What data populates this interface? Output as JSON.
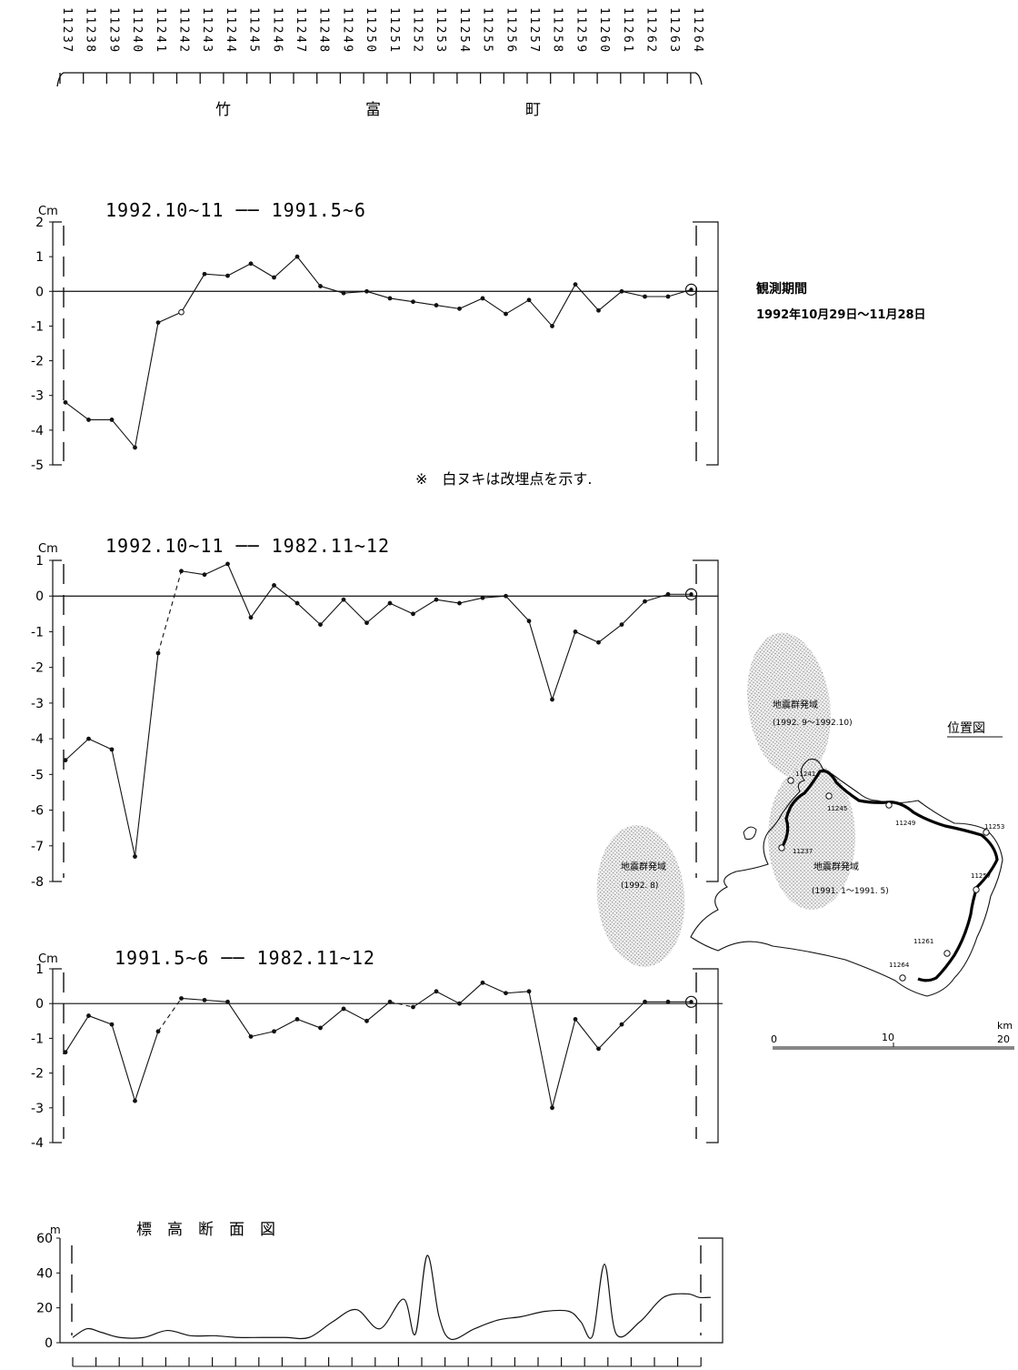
{
  "benchmarks": [
    "11237",
    "11238",
    "11239",
    "11240",
    "11241",
    "11242",
    "11243",
    "11244",
    "11245",
    "11246",
    "11247",
    "11248",
    "11249",
    "11250",
    "11251",
    "11252",
    "11253",
    "11254",
    "11255",
    "11256",
    "11257",
    "11258",
    "11259",
    "11260",
    "11261",
    "11262",
    "11263",
    "11264"
  ],
  "route_name": [
    "竹",
    "富",
    "町"
  ],
  "observation": {
    "label": "観測期間",
    "period": "1992年10月29日～11月28日"
  },
  "note": "※　白ヌキは改埋点を示す.",
  "location_map": {
    "title": "位置図",
    "swarms": [
      {
        "label": "地震群発域",
        "period": "(1992. 9～1992.10)"
      },
      {
        "label": "地震群発域",
        "period": "(1991. 1～1991. 5)"
      },
      {
        "label": "地震群発域",
        "period": "(1992. 8)"
      }
    ],
    "point_labels": [
      "11241",
      "11245",
      "11249",
      "11253",
      "11237",
      "11257",
      "11261",
      "11264"
    ],
    "scale": {
      "unit": "km",
      "ticks": [
        "0",
        "10",
        "20"
      ]
    }
  },
  "chart_data": [
    {
      "type": "line",
      "title": "1992.10~11 ── 1991.5~6",
      "ylabel": "Cm",
      "ylim": [
        -5,
        2
      ],
      "yticks": [
        "2",
        "1",
        "0",
        "-1",
        "-2",
        "-3",
        "-4",
        "-5"
      ],
      "x": [
        0,
        1,
        2,
        3,
        4,
        5,
        6,
        7,
        8,
        9,
        10,
        11,
        12,
        13,
        14,
        15,
        16,
        17,
        18,
        19,
        20,
        21,
        22,
        23,
        24,
        25,
        26,
        27
      ],
      "values": [
        -3.2,
        -3.7,
        -3.7,
        -4.5,
        -0.9,
        -0.6,
        0.5,
        0.45,
        0.8,
        0.4,
        1.0,
        0.15,
        -0.05,
        0.0,
        -0.2,
        -0.3,
        -0.4,
        -0.5,
        -0.2,
        -0.65,
        -0.25,
        -1.0,
        0.2,
        -0.55,
        0.0,
        -0.15,
        -0.15,
        0.05
      ],
      "open_points": [
        5
      ],
      "dashed_segments": []
    },
    {
      "type": "line",
      "title": "1992.10~11 ── 1982.11~12",
      "ylabel": "Cm",
      "ylim": [
        -8,
        1
      ],
      "yticks": [
        "1",
        "0",
        "-1",
        "-2",
        "-3",
        "-4",
        "-5",
        "-6",
        "-7",
        "-8"
      ],
      "x": [
        0,
        1,
        2,
        3,
        4,
        5,
        6,
        7,
        8,
        9,
        10,
        11,
        12,
        13,
        14,
        15,
        16,
        17,
        18,
        19,
        20,
        21,
        22,
        23,
        24,
        25,
        26,
        27
      ],
      "values": [
        -4.6,
        -4.0,
        -4.3,
        -7.3,
        -1.6,
        0.7,
        0.6,
        0.9,
        -0.6,
        0.3,
        -0.2,
        -0.8,
        -0.1,
        -0.75,
        -0.2,
        -0.5,
        -0.1,
        -0.2,
        -0.05,
        0.0,
        -0.7,
        -2.9,
        -1.0,
        -1.3,
        -0.8,
        -0.15,
        0.05,
        0.05
      ],
      "open_points": [],
      "dashed_segments": [
        4
      ]
    },
    {
      "type": "line",
      "title": "1991.5~6 ── 1982.11~12",
      "ylabel": "Cm",
      "ylim": [
        -4,
        1
      ],
      "yticks": [
        "1",
        "0",
        "-1",
        "-2",
        "-3",
        "-4"
      ],
      "x": [
        0,
        1,
        2,
        3,
        4,
        5,
        6,
        7,
        8,
        9,
        10,
        11,
        12,
        13,
        14,
        15,
        16,
        17,
        18,
        19,
        20,
        21,
        22,
        23,
        24,
        25,
        26,
        27
      ],
      "values": [
        -1.4,
        -0.35,
        -0.6,
        -2.8,
        -0.8,
        0.15,
        0.1,
        0.05,
        -0.95,
        -0.8,
        -0.45,
        -0.7,
        -0.15,
        -0.5,
        0.05,
        -0.1,
        0.35,
        0.0,
        0.6,
        0.3,
        0.35,
        -3.0,
        -0.45,
        -1.3,
        -0.6,
        0.05,
        0.05,
        0.05
      ],
      "open_points": [],
      "dashed_segments": [
        4,
        14
      ]
    },
    {
      "type": "area",
      "title": "標　高　断　面　図",
      "ylabel": "m",
      "ylim": [
        0,
        60
      ],
      "yticks": [
        "60",
        "40",
        "20",
        "0"
      ],
      "x": [
        0,
        0.6,
        1.2,
        2,
        3,
        4,
        5,
        6,
        7,
        8,
        9,
        10,
        11,
        12,
        13,
        14,
        14.5,
        15,
        15.5,
        16,
        17,
        18,
        19,
        20,
        21,
        21.5,
        22,
        22.5,
        23,
        24,
        25,
        26,
        26.5,
        27
      ],
      "values": [
        3,
        8,
        6,
        3,
        3,
        7,
        4,
        4,
        3,
        3,
        3,
        3,
        12,
        19,
        8,
        25,
        5,
        50,
        15,
        2,
        8,
        13,
        15,
        18,
        18,
        12,
        4,
        45,
        5,
        12,
        26,
        28,
        26,
        26
      ]
    }
  ]
}
